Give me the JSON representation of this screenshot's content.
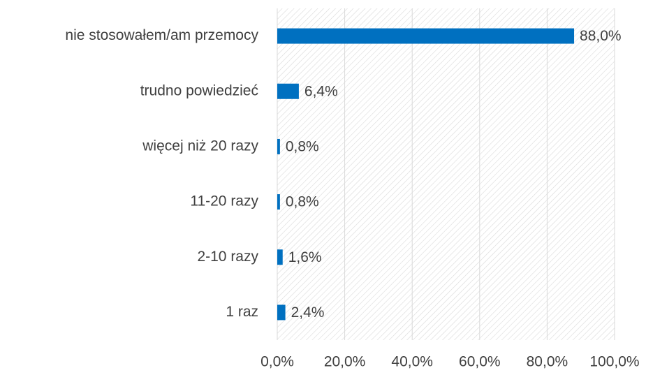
{
  "chart_data": {
    "type": "bar",
    "orientation": "horizontal",
    "categories": [
      "nie stosowałem/am przemocy",
      "trudno powiedzieć",
      "więcej niż 20 razy",
      "11-20 razy",
      "2-10 razy",
      "1 raz"
    ],
    "values": [
      88.0,
      6.4,
      0.8,
      0.8,
      1.6,
      2.4
    ],
    "value_labels": [
      "88,0%",
      "6,4%",
      "0,8%",
      "0,8%",
      "1,6%",
      "2,4%"
    ],
    "color": "#0070c0",
    "xlim": [
      0,
      100
    ],
    "xticks": [
      {
        "value": 0,
        "label": "0,0%"
      },
      {
        "value": 20,
        "label": "20,0%"
      },
      {
        "value": 40,
        "label": "40,0%"
      },
      {
        "value": 60,
        "label": "60,0%"
      },
      {
        "value": 80,
        "label": "80,0%"
      },
      {
        "value": 100,
        "label": "100,0%"
      }
    ],
    "grid": true
  }
}
